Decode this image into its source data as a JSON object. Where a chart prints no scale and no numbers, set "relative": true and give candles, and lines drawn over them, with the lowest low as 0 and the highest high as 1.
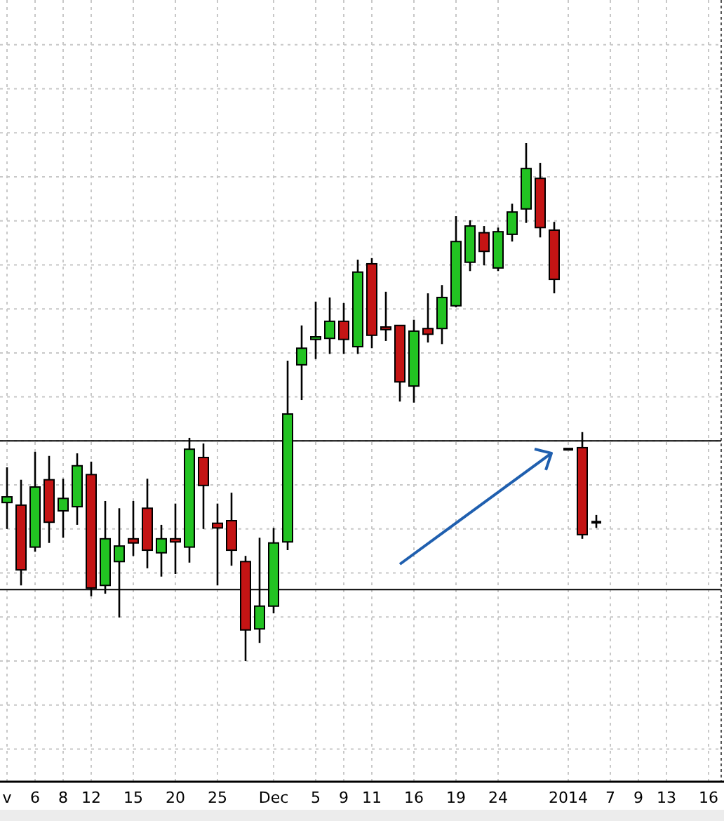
{
  "chart_data": {
    "type": "candlestick",
    "relative": true,
    "grid": true,
    "categories": [
      "v",
      null,
      "6",
      null,
      "8",
      null,
      "12",
      null,
      null,
      "15",
      null,
      null,
      "20",
      null,
      null,
      "25",
      null,
      null,
      null,
      "Dec",
      null,
      null,
      "5",
      null,
      "9",
      null,
      "11",
      null,
      null,
      "16",
      null,
      null,
      "19",
      null,
      null,
      "24",
      null,
      null,
      null,
      null,
      "2014",
      null,
      null,
      "7",
      null,
      "9",
      null,
      "13",
      null,
      null,
      "16"
    ],
    "ohlc": [
      [
        0.306,
        0.374,
        0.255,
        0.317
      ],
      [
        0.301,
        0.35,
        0.146,
        0.176
      ],
      [
        0.22,
        0.404,
        0.211,
        0.336
      ],
      [
        0.35,
        0.396,
        0.228,
        0.268
      ],
      [
        0.29,
        0.352,
        0.238,
        0.314
      ],
      [
        0.298,
        0.401,
        0.263,
        0.377
      ],
      [
        0.36,
        0.385,
        0.125,
        0.141
      ],
      [
        0.146,
        0.309,
        0.13,
        0.236
      ],
      [
        0.192,
        0.295,
        0.084,
        0.222
      ],
      [
        0.236,
        0.309,
        0.203,
        0.228
      ],
      [
        0.295,
        0.352,
        0.179,
        0.214
      ],
      [
        0.209,
        0.263,
        0.163,
        0.236
      ],
      [
        0.236,
        0.304,
        0.168,
        0.23
      ],
      [
        0.22,
        0.431,
        0.19,
        0.409
      ],
      [
        0.393,
        0.42,
        0.255,
        0.339
      ],
      [
        0.266,
        0.304,
        0.146,
        0.257
      ],
      [
        0.271,
        0.325,
        0.184,
        0.214
      ],
      [
        0.192,
        0.203,
        0,
        0.06
      ],
      [
        0.062,
        0.238,
        0.035,
        0.106
      ],
      [
        0.106,
        0.257,
        0.092,
        0.228
      ],
      [
        0.23,
        0.58,
        0.214,
        0.477
      ],
      [
        0.572,
        0.648,
        0.504,
        0.604
      ],
      [
        0.621,
        0.694,
        0.583,
        0.626
      ],
      [
        0.623,
        0.702,
        0.593,
        0.656
      ],
      [
        0.656,
        0.691,
        0.593,
        0.621
      ],
      [
        0.607,
        0.775,
        0.593,
        0.751
      ],
      [
        0.767,
        0.778,
        0.604,
        0.629
      ],
      [
        0.645,
        0.713,
        0.618,
        0.64
      ],
      [
        0.648,
        0.648,
        0.501,
        0.539
      ],
      [
        0.531,
        0.659,
        0.499,
        0.637
      ],
      [
        0.642,
        0.71,
        0.615,
        0.631
      ],
      [
        0.642,
        0.726,
        0.612,
        0.702
      ],
      [
        0.686,
        0.859,
        0.683,
        0.81
      ],
      [
        0.77,
        0.851,
        0.753,
        0.84
      ],
      [
        0.827,
        0.84,
        0.764,
        0.791
      ],
      [
        0.759,
        0.837,
        0.753,
        0.829
      ],
      [
        0.824,
        0.883,
        0.81,
        0.867
      ],
      [
        0.873,
        1,
        0.846,
        0.951
      ],
      [
        0.932,
        0.962,
        0.818,
        0.837
      ],
      [
        0.832,
        0.848,
        0.71,
        0.737
      ],
      [
        0.409,
        0.409,
        0.409,
        0.409
      ],
      [
        0.412,
        0.442,
        0.236,
        0.244
      ],
      [
        0.268,
        0.282,
        0.257,
        0.268
      ],
      null,
      null,
      null,
      null,
      null,
      null,
      null,
      null
    ],
    "ref_lines": [
      {
        "axis": "y",
        "value": 0.425,
        "color": "#000000"
      },
      {
        "axis": "y",
        "value": 0.138,
        "color": "#000000"
      }
    ]
  }
}
